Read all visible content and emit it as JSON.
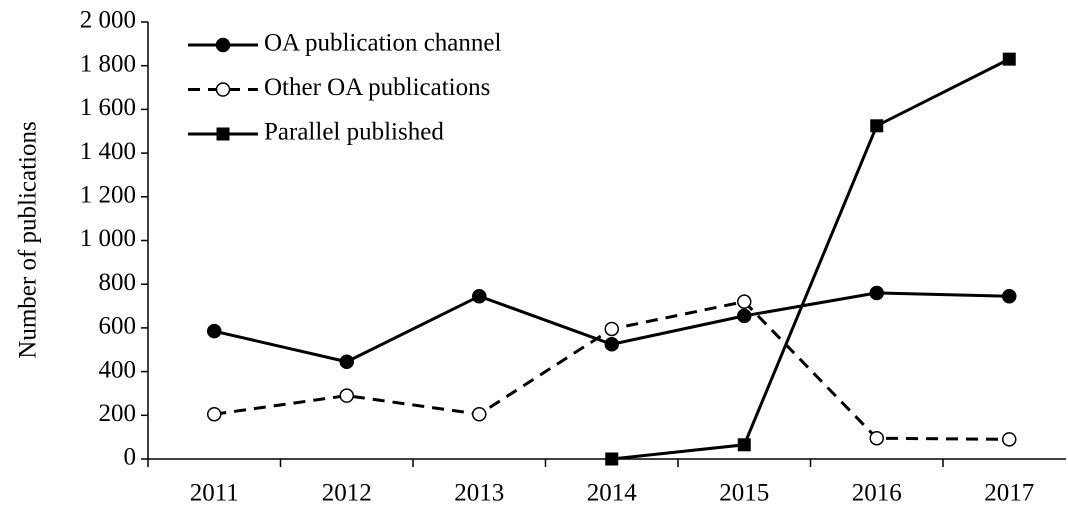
{
  "chart_data": {
    "type": "line",
    "y_label": "Number of publications",
    "categories": [
      "2011",
      "2012",
      "2013",
      "2014",
      "2015",
      "2016",
      "2017"
    ],
    "series": [
      {
        "name": "OA publication channel",
        "color": "#000000",
        "line_style": "solid",
        "marker": "circle-filled",
        "values": [
          585,
          445,
          745,
          525,
          655,
          760,
          745
        ]
      },
      {
        "name": "Other OA publications",
        "color": "#000000",
        "line_style": "dashed",
        "marker": "circle-open",
        "values": [
          205,
          290,
          205,
          595,
          720,
          95,
          90
        ]
      },
      {
        "name": "Parallel published",
        "color": "#000000",
        "line_style": "solid",
        "marker": "square-filled",
        "values": [
          null,
          null,
          null,
          0,
          65,
          1525,
          1830
        ]
      }
    ],
    "ylim": [
      0,
      2000
    ],
    "yticks": [
      0,
      200,
      400,
      600,
      800,
      {
        "value": 1000,
        "label": "1 000"
      },
      {
        "value": 1200,
        "label": "1 200"
      },
      {
        "value": 1400,
        "label": "1 400"
      },
      {
        "value": 1600,
        "label": "1 600"
      },
      {
        "value": 1800,
        "label": "1 800"
      },
      {
        "value": 2000,
        "label": "2 000"
      }
    ],
    "grid": false,
    "legend": "top-left"
  }
}
